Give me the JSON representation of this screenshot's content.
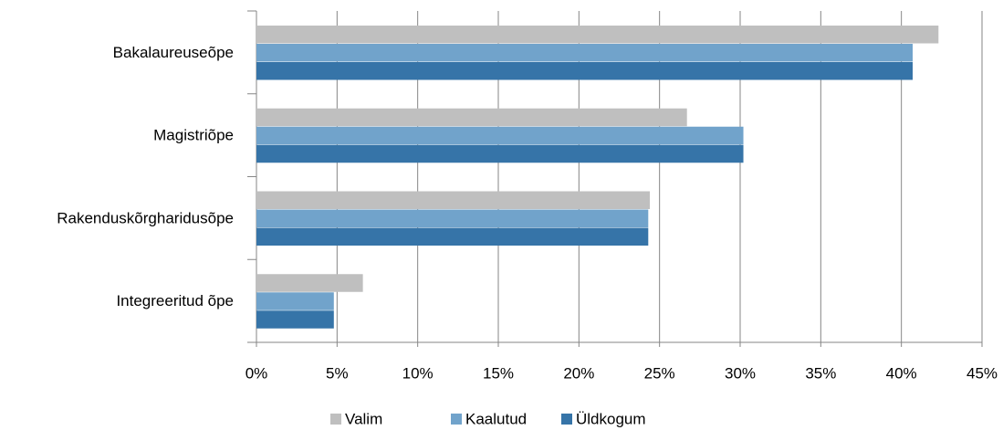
{
  "chart_data": {
    "type": "bar",
    "orientation": "horizontal",
    "categories": [
      "Bakalaureuseõpe",
      "Magistriõpe",
      "Rakenduskõrgharidusõpe",
      "Integreeritud õpe"
    ],
    "series": [
      {
        "name": "Valim",
        "color": "#bfbfbf",
        "values": [
          42.3,
          26.7,
          24.4,
          6.6
        ]
      },
      {
        "name": "Kaalutud",
        "color": "#71a3cb",
        "values": [
          40.7,
          30.2,
          24.3,
          4.8
        ]
      },
      {
        "name": "Üldkogum",
        "color": "#3674a8",
        "values": [
          40.7,
          30.2,
          24.3,
          4.8
        ]
      }
    ],
    "xlim": [
      0,
      45
    ],
    "xticks": [
      {
        "value": 0,
        "label": "0%"
      },
      {
        "value": 5,
        "label": "5%"
      },
      {
        "value": 10,
        "label": "10%"
      },
      {
        "value": 15,
        "label": "15%"
      },
      {
        "value": 20,
        "label": "20%"
      },
      {
        "value": 25,
        "label": "25%"
      },
      {
        "value": 30,
        "label": "30%"
      },
      {
        "value": 35,
        "label": "35%"
      },
      {
        "value": 40,
        "label": "40%"
      },
      {
        "value": 45,
        "label": "45%"
      }
    ],
    "grid": true,
    "legend": "bottom"
  }
}
